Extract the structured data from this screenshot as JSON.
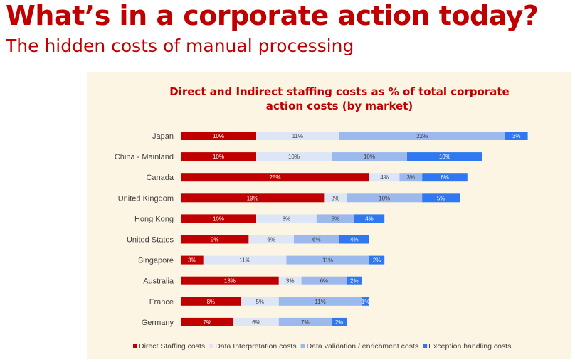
{
  "header": {
    "title": "What’s in a corporate action today?",
    "subtitle": "The hidden costs of manual processing"
  },
  "chart_data": {
    "type": "bar",
    "orientation": "horizontal",
    "stacked": true,
    "title_line1": "Direct and Indirect staffing costs as % of total corporate",
    "title_line2": "action costs (by market)",
    "categories": [
      "Japan",
      "China - Mainland",
      "Canada",
      "United Kingdom",
      "Hong Kong",
      "United States",
      "Singapore",
      "Australia",
      "France",
      "Germany"
    ],
    "series": [
      {
        "name": "Direct Staffing costs",
        "color": "#c00000",
        "label_color": "#ffffff",
        "values": [
          10,
          10,
          25,
          19,
          10,
          9,
          3,
          13,
          8,
          7
        ]
      },
      {
        "name": "Data Interpretation costs",
        "color": "#dce6f7",
        "label_color": "#404040",
        "values": [
          11,
          10,
          4,
          3,
          8,
          6,
          11,
          3,
          5,
          6
        ]
      },
      {
        "name": "Data validation / enrichment costs",
        "color": "#9cb9ee",
        "label_color": "#404040",
        "values": [
          22,
          10,
          3,
          10,
          5,
          6,
          11,
          6,
          11,
          7
        ]
      },
      {
        "name": "Exception handling costs",
        "color": "#2f78f0",
        "label_color": "#ffffff",
        "values": [
          3,
          10,
          6,
          5,
          4,
          4,
          2,
          2,
          1,
          2
        ]
      }
    ],
    "value_suffix": "%",
    "legend_position": "bottom",
    "grid": false
  }
}
